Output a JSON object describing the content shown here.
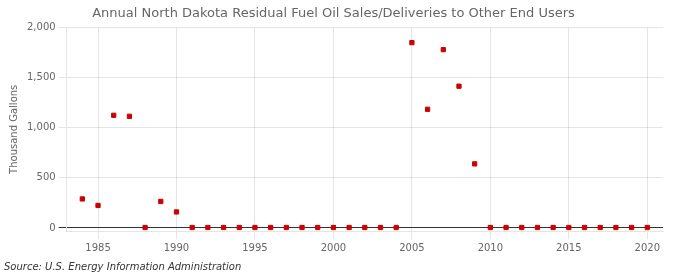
{
  "chart_data": {
    "type": "scatter",
    "title": "Annual North Dakota Residual Fuel Oil Sales/Deliveries to Other End Users",
    "ylabel": "Thousand Gallons",
    "source": "Source: U.S. Energy Information Administration",
    "color": "#cc0000",
    "marker": "square",
    "grid": true,
    "xlim": [
      1983,
      2021
    ],
    "ylim": [
      -30,
      2000
    ],
    "xticks": [
      1985,
      1990,
      1995,
      2000,
      2005,
      2010,
      2015,
      2020
    ],
    "yticks": [
      0,
      500,
      {
        "value": 1000,
        "label": "1,000"
      },
      {
        "value": 1500,
        "label": "1,500"
      },
      {
        "value": 2000,
        "label": "2,000"
      }
    ],
    "x": [
      1984,
      1985,
      1986,
      1987,
      1988,
      1989,
      1990,
      1991,
      1992,
      1993,
      1994,
      1995,
      1996,
      1997,
      1998,
      1999,
      2000,
      2001,
      2002,
      2003,
      2004,
      2005,
      2006,
      2007,
      2008,
      2009,
      2010,
      2011,
      2012,
      2013,
      2014,
      2015,
      2016,
      2017,
      2018,
      2019,
      2020
    ],
    "values": [
      290,
      225,
      1125,
      1115,
      5,
      265,
      160,
      5,
      5,
      5,
      5,
      5,
      5,
      5,
      5,
      5,
      5,
      5,
      5,
      5,
      5,
      1850,
      1185,
      1780,
      1415,
      640,
      5,
      5,
      5,
      5,
      5,
      5,
      5,
      5,
      5,
      5,
      5
    ]
  }
}
